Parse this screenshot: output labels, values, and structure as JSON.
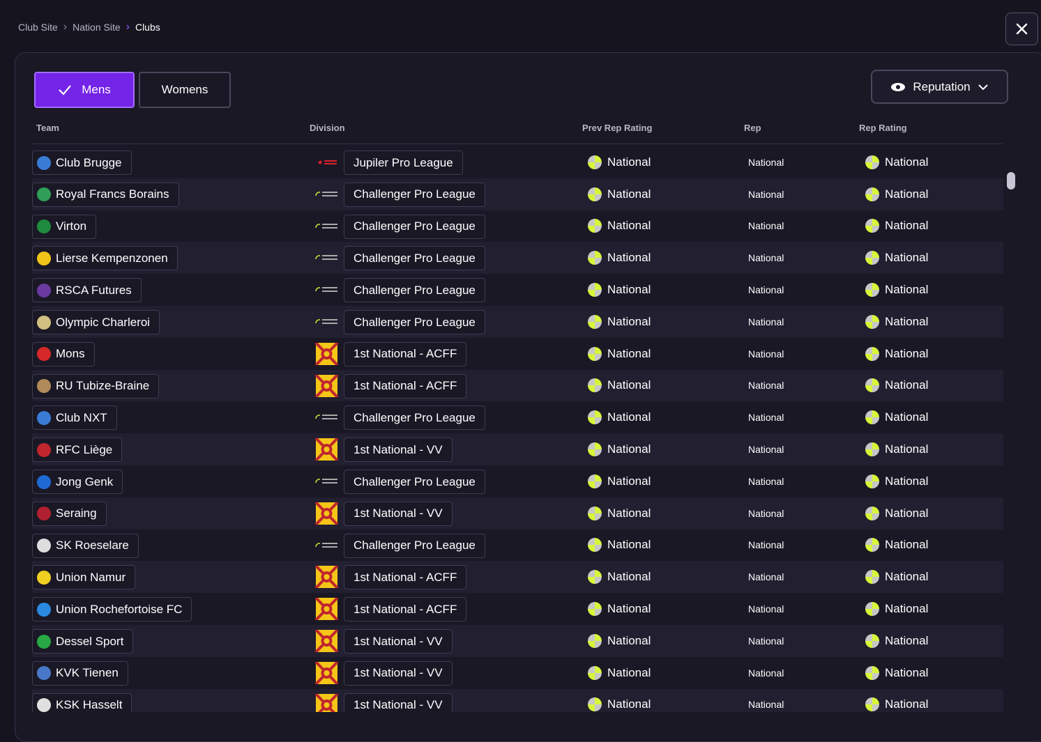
{
  "breadcrumb": [
    "Club Site",
    "Nation Site",
    "Clubs"
  ],
  "tabs": [
    "Mens",
    "Womens"
  ],
  "sort_button": "Reputation",
  "table": {
    "columns": [
      "Team",
      "Division",
      "Prev Rep Rating",
      "Rep",
      "Rep Rating"
    ],
    "rows": [
      [
        "Club Brugge",
        "Jupiler Pro League",
        "National",
        "National",
        "National"
      ],
      [
        "Royal Francs Borains",
        "Challenger Pro League",
        "National",
        "National",
        "National"
      ],
      [
        "Virton",
        "Challenger Pro League",
        "National",
        "National",
        "National"
      ],
      [
        "Lierse Kempenzonen",
        "Challenger Pro League",
        "National",
        "National",
        "National"
      ],
      [
        "RSCA Futures",
        "Challenger Pro League",
        "National",
        "National",
        "National"
      ],
      [
        "Olympic Charleroi",
        "Challenger Pro League",
        "National",
        "National",
        "National"
      ],
      [
        "Mons",
        "1st National - ACFF",
        "National",
        "National",
        "National"
      ],
      [
        "RU Tubize-Braine",
        "1st National - ACFF",
        "National",
        "National",
        "National"
      ],
      [
        "Club NXT",
        "Challenger Pro League",
        "National",
        "National",
        "National"
      ],
      [
        "RFC Liège",
        "1st National - VV",
        "National",
        "National",
        "National"
      ],
      [
        "Jong Genk",
        "Challenger Pro League",
        "National",
        "National",
        "National"
      ],
      [
        "Seraing",
        "1st National - VV",
        "National",
        "National",
        "National"
      ],
      [
        "SK Roeselare",
        "Challenger Pro League",
        "National",
        "National",
        "National"
      ],
      [
        "Union Namur",
        "1st National - ACFF",
        "National",
        "National",
        "National"
      ],
      [
        "Union Rochefortoise FC",
        "1st National - ACFF",
        "National",
        "National",
        "National"
      ],
      [
        "Dessel Sport",
        "1st National - VV",
        "National",
        "National",
        "National"
      ],
      [
        "KVK Tienen",
        "1st National - VV",
        "National",
        "National",
        "National"
      ],
      [
        "KSK Hasselt",
        "1st National - VV",
        "National",
        "National",
        "National"
      ]
    ]
  }
}
